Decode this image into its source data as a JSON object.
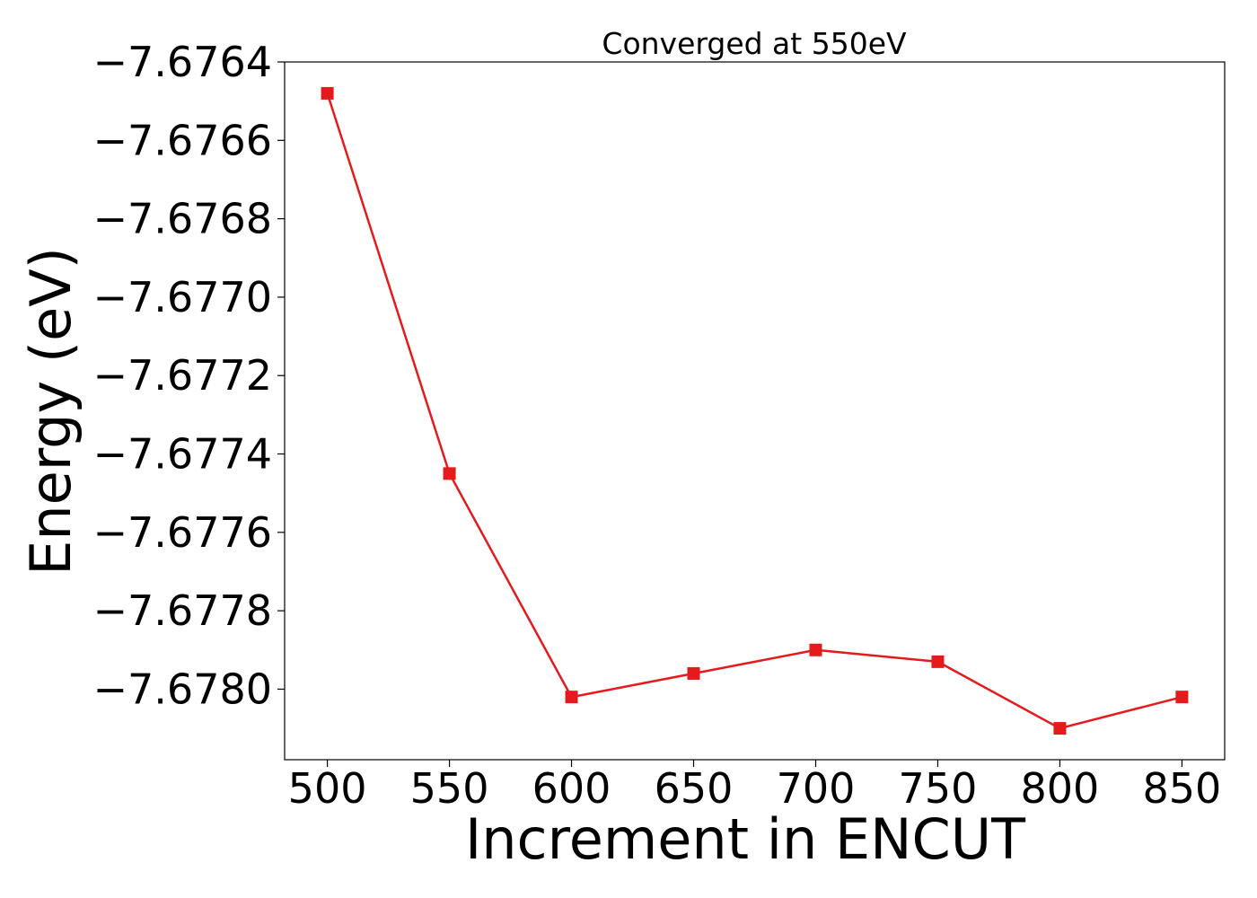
{
  "chart_data": {
    "type": "line",
    "title": "Converged at 550eV",
    "xlabel": "Increment in ENCUT",
    "ylabel": "Energy (eV)",
    "x": [
      500,
      550,
      600,
      650,
      700,
      750,
      800,
      850
    ],
    "series": [
      {
        "values": [
          -7.67648,
          -7.67745,
          -7.67802,
          -7.67796,
          -7.6779,
          -7.67793,
          -7.6781,
          -7.67802
        ],
        "color": "#e41a1c",
        "marker": "square"
      }
    ],
    "xlim": [
      482.5,
      867.5
    ],
    "ylim": [
      -7.67818,
      -7.6764
    ],
    "xticks": [
      500,
      550,
      600,
      650,
      700,
      750,
      800,
      850
    ],
    "xtick_labels": [
      "500",
      "550",
      "600",
      "650",
      "700",
      "750",
      "800",
      "850"
    ],
    "yticks": [
      -7.6764,
      -7.6766,
      -7.6768,
      -7.677,
      -7.6772,
      -7.6774,
      -7.6776,
      -7.6778,
      -7.678
    ],
    "ytick_labels": [
      "−7.6764",
      "−7.6766",
      "−7.6768",
      "−7.6770",
      "−7.6772",
      "−7.6774",
      "−7.6776",
      "−7.6778",
      "−7.6780"
    ],
    "grid": false,
    "legend": "none"
  }
}
